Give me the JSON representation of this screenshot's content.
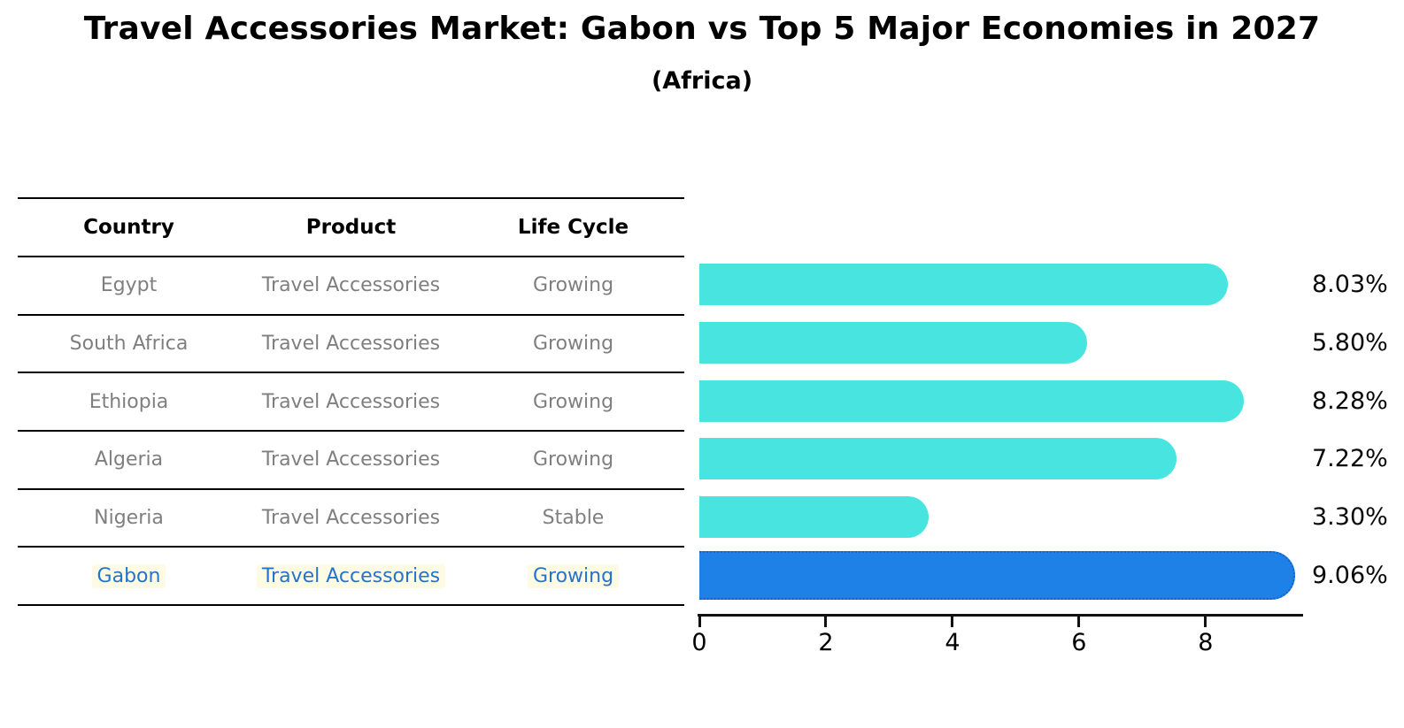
{
  "chart_data": {
    "type": "bar",
    "orientation": "horizontal",
    "title": "Travel Accessories Market: Gabon vs Top 5 Major Economies in 2027",
    "subtitle": "(Africa)",
    "categories": [
      "Egypt",
      "South Africa",
      "Ethiopia",
      "Algeria",
      "Nigeria",
      "Gabon"
    ],
    "values": [
      8.03,
      5.8,
      8.28,
      7.22,
      3.3,
      9.06
    ],
    "value_labels": [
      "8.03%",
      "5.80%",
      "8.28%",
      "7.22%",
      "3.30%",
      "9.06%"
    ],
    "xlim": [
      0,
      9.513
    ],
    "x_ticks": [
      0,
      2,
      4,
      6,
      8
    ],
    "grid": false,
    "legend": null,
    "highlight_index": 5,
    "colors": {
      "bar": "#48E5E0",
      "highlight_bar": "#1E81E8",
      "highlight_border": "#1A5FC8",
      "highlight_text": "#2473CD",
      "highlight_row_bg": "#FDFBE4",
      "row_text": "#7f7f7f",
      "axis": "#111111"
    },
    "table": {
      "columns": [
        "Country",
        "Product",
        "Life Cycle"
      ],
      "rows": [
        [
          "Egypt",
          "Travel Accessories",
          "Growing"
        ],
        [
          "South Africa",
          "Travel Accessories",
          "Growing"
        ],
        [
          "Ethiopia",
          "Travel Accessories",
          "Growing"
        ],
        [
          "Algeria",
          "Travel Accessories",
          "Growing"
        ],
        [
          "Nigeria",
          "Travel Accessories",
          "Stable"
        ],
        [
          "Gabon",
          "Travel Accessories",
          "Growing"
        ]
      ]
    }
  }
}
